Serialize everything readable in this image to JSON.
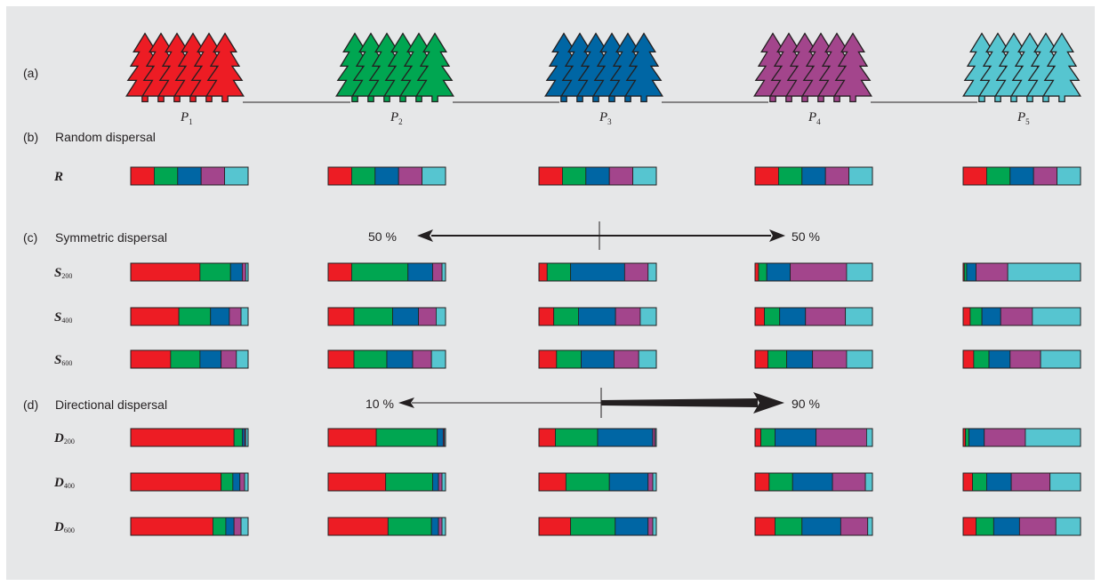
{
  "colors": {
    "P1": "#ed1c24",
    "P2": "#00a651",
    "P3": "#0066a4",
    "P4": "#a3458c",
    "P5": "#56c5d0"
  },
  "panels": {
    "a": {
      "letter": "(a)",
      "populations": [
        "P1",
        "P2",
        "P3",
        "P4",
        "P5"
      ]
    },
    "b": {
      "letter": "(b)",
      "title": "Random dispersal"
    },
    "c": {
      "letter": "(c)",
      "title": "Symmetric dispersal",
      "left_pct": "50 %",
      "right_pct": "50 %"
    },
    "d": {
      "letter": "(d)",
      "title": "Directional dispersal",
      "left_pct": "10 %",
      "right_pct": "90 %"
    }
  },
  "rows": [
    {
      "id": "R",
      "label": "R",
      "sub": "",
      "bars": [
        [
          0.2,
          0.2,
          0.2,
          0.2,
          0.2
        ],
        [
          0.2,
          0.2,
          0.2,
          0.2,
          0.2
        ],
        [
          0.2,
          0.2,
          0.2,
          0.2,
          0.2
        ],
        [
          0.2,
          0.2,
          0.2,
          0.2,
          0.2
        ],
        [
          0.2,
          0.2,
          0.2,
          0.2,
          0.2
        ]
      ]
    },
    {
      "id": "S200",
      "label": "S",
      "sub": "200",
      "bars": [
        [
          0.59,
          0.26,
          0.1,
          0.03,
          0.02
        ],
        [
          0.2,
          0.48,
          0.21,
          0.08,
          0.03
        ],
        [
          0.07,
          0.2,
          0.46,
          0.2,
          0.07
        ],
        [
          0.03,
          0.07,
          0.2,
          0.48,
          0.22
        ],
        [
          0.01,
          0.02,
          0.08,
          0.27,
          0.62
        ]
      ]
    },
    {
      "id": "S400",
      "label": "S",
      "sub": "400",
      "bars": [
        [
          0.41,
          0.27,
          0.16,
          0.1,
          0.06
        ],
        [
          0.22,
          0.33,
          0.22,
          0.15,
          0.08
        ],
        [
          0.12,
          0.2,
          0.3,
          0.2,
          0.13
        ],
        [
          0.08,
          0.13,
          0.22,
          0.34,
          0.23
        ],
        [
          0.06,
          0.1,
          0.16,
          0.27,
          0.41
        ]
      ]
    },
    {
      "id": "S600",
      "label": "S",
      "sub": "600",
      "bars": [
        [
          0.34,
          0.25,
          0.18,
          0.13,
          0.1
        ],
        [
          0.22,
          0.28,
          0.22,
          0.16,
          0.12
        ],
        [
          0.15,
          0.21,
          0.28,
          0.21,
          0.15
        ],
        [
          0.11,
          0.16,
          0.22,
          0.29,
          0.22
        ],
        [
          0.09,
          0.13,
          0.18,
          0.26,
          0.34
        ]
      ]
    },
    {
      "id": "D200",
      "label": "D",
      "sub": "200",
      "bars": [
        [
          0.88,
          0.07,
          0.02,
          0.01,
          0.02
        ],
        [
          0.41,
          0.52,
          0.05,
          0.01,
          0.01
        ],
        [
          0.14,
          0.36,
          0.47,
          0.02,
          0.01
        ],
        [
          0.05,
          0.12,
          0.35,
          0.43,
          0.05
        ],
        [
          0.02,
          0.03,
          0.13,
          0.35,
          0.47
        ]
      ]
    },
    {
      "id": "D400",
      "label": "D",
      "sub": "400",
      "bars": [
        [
          0.77,
          0.1,
          0.06,
          0.04,
          0.03
        ],
        [
          0.49,
          0.4,
          0.05,
          0.03,
          0.03
        ],
        [
          0.23,
          0.37,
          0.33,
          0.04,
          0.03
        ],
        [
          0.12,
          0.2,
          0.34,
          0.28,
          0.06
        ],
        [
          0.08,
          0.12,
          0.21,
          0.33,
          0.26
        ]
      ]
    },
    {
      "id": "D600",
      "label": "D",
      "sub": "600",
      "bars": [
        [
          0.7,
          0.11,
          0.07,
          0.06,
          0.06
        ],
        [
          0.51,
          0.37,
          0.06,
          0.03,
          0.03
        ],
        [
          0.27,
          0.38,
          0.28,
          0.04,
          0.03
        ],
        [
          0.17,
          0.23,
          0.33,
          0.23,
          0.04
        ],
        [
          0.11,
          0.15,
          0.22,
          0.31,
          0.21
        ]
      ]
    }
  ]
}
